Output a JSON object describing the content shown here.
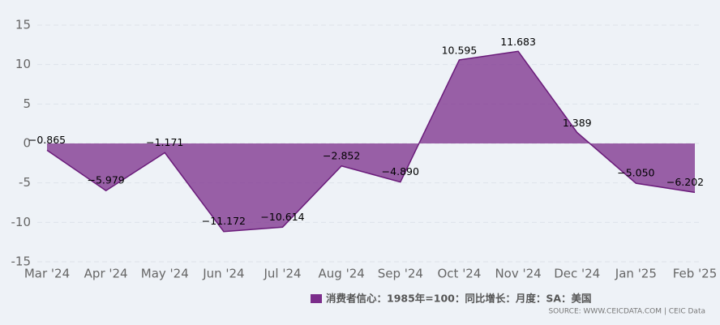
{
  "chart_data": {
    "type": "area",
    "categories": [
      "Mar '24",
      "Apr '24",
      "May '24",
      "Jun '24",
      "Jul '24",
      "Aug '24",
      "Sep '24",
      "Oct '24",
      "Nov '24",
      "Dec '24",
      "Jan '25",
      "Feb '25"
    ],
    "series": [
      {
        "name": "消费者信心：1985年=100：同比增长：月度：SA：美国",
        "color": "#7b2d8b",
        "values": [
          -0.865,
          -5.979,
          -1.171,
          -11.172,
          -10.614,
          -2.852,
          -4.89,
          10.595,
          11.683,
          1.389,
          -5.05,
          -6.202
        ],
        "value_labels": [
          "−0.865",
          "−5.979",
          "−1.171",
          "−11.172",
          "−10.614",
          "−2.852",
          "−4.890",
          "10.595",
          "11.683",
          "1.389",
          "−5.050",
          "−6.202"
        ]
      }
    ],
    "ylim": [
      -15,
      15
    ],
    "yticks": [
      -15,
      -10,
      -5,
      0,
      5,
      10,
      15
    ],
    "grid": true,
    "source": "SOURCE: WWW.CEICDATA.COM | CEIC Data"
  }
}
